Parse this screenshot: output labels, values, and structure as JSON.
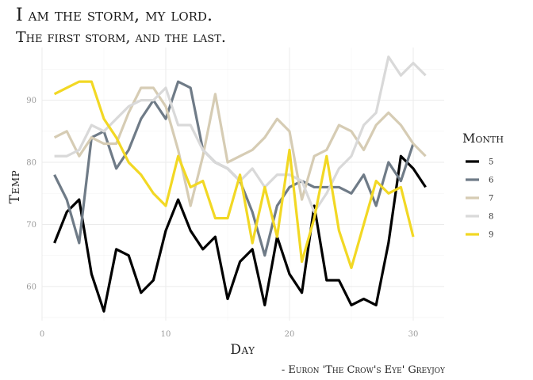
{
  "chart_data": {
    "type": "line",
    "title": "I am the storm, my lord.",
    "subtitle": "The first storm, and the last.",
    "xlabel": "Day",
    "ylabel": "Temp",
    "caption": "- Euron 'The Crow's Eye' Greyjoy",
    "xlim": [
      0,
      32.5
    ],
    "ylim": [
      54.5,
      98.5
    ],
    "xticks": [
      0,
      10,
      20,
      30
    ],
    "yticks": [
      60,
      70,
      80,
      90
    ],
    "grid": true,
    "legend": {
      "title": "Month",
      "position": "right"
    },
    "series": [
      {
        "name": "5",
        "color": "#000000",
        "x": [
          1,
          2,
          3,
          4,
          5,
          6,
          7,
          8,
          9,
          10,
          11,
          12,
          13,
          14,
          15,
          16,
          17,
          18,
          19,
          20,
          21,
          22,
          23,
          24,
          25,
          26,
          27,
          28,
          29,
          30,
          31
        ],
        "y": [
          67,
          72,
          74,
          62,
          56,
          66,
          65,
          59,
          61,
          69,
          74,
          69,
          66,
          68,
          58,
          64,
          66,
          57,
          68,
          62,
          59,
          73,
          61,
          61,
          57,
          58,
          57,
          67,
          81,
          79,
          76
        ]
      },
      {
        "name": "6",
        "color": "#6f7b87",
        "x": [
          1,
          2,
          3,
          4,
          5,
          6,
          7,
          8,
          9,
          10,
          11,
          12,
          13,
          14,
          15,
          16,
          17,
          18,
          19,
          20,
          21,
          22,
          23,
          24,
          25,
          26,
          27,
          28,
          29,
          30
        ],
        "y": [
          78,
          74,
          67,
          84,
          85,
          79,
          82,
          87,
          90,
          87,
          93,
          92,
          82,
          80,
          79,
          77,
          72,
          65,
          73,
          76,
          77,
          76,
          76,
          76,
          75,
          78,
          73,
          80,
          77,
          83
        ]
      },
      {
        "name": "7",
        "color": "#d6ccb4",
        "x": [
          1,
          2,
          3,
          4,
          5,
          6,
          7,
          8,
          9,
          10,
          11,
          12,
          13,
          14,
          15,
          16,
          17,
          18,
          19,
          20,
          21,
          22,
          23,
          24,
          25,
          26,
          27,
          28,
          29,
          30,
          31
        ],
        "y": [
          84,
          85,
          81,
          84,
          83,
          83,
          88,
          92,
          92,
          89,
          82,
          73,
          81,
          91,
          80,
          81,
          82,
          84,
          87,
          85,
          74,
          81,
          82,
          86,
          85,
          82,
          86,
          88,
          86,
          83,
          81
        ]
      },
      {
        "name": "8",
        "color": "#d9d9d9",
        "x": [
          1,
          2,
          3,
          4,
          5,
          6,
          7,
          8,
          9,
          10,
          11,
          12,
          13,
          14,
          15,
          16,
          17,
          18,
          19,
          20,
          21,
          22,
          23,
          24,
          25,
          26,
          27,
          28,
          29,
          30,
          31
        ],
        "y": [
          81,
          81,
          82,
          86,
          85,
          87,
          89,
          90,
          90,
          92,
          86,
          86,
          82,
          80,
          79,
          77,
          79,
          76,
          78,
          78,
          77,
          72,
          75,
          79,
          81,
          86,
          88,
          97,
          94,
          96,
          94
        ]
      },
      {
        "name": "9",
        "color": "#f2d824",
        "x": [
          1,
          2,
          3,
          4,
          5,
          6,
          7,
          8,
          9,
          10,
          11,
          12,
          13,
          14,
          15,
          16,
          17,
          18,
          19,
          20,
          21,
          22,
          23,
          24,
          25,
          26,
          27,
          28,
          29,
          30
        ],
        "y": [
          91,
          92,
          93,
          93,
          87,
          84,
          80,
          78,
          75,
          73,
          81,
          76,
          77,
          71,
          71,
          78,
          67,
          76,
          68,
          82,
          64,
          71,
          81,
          69,
          63,
          70,
          77,
          75,
          76,
          68
        ]
      }
    ]
  }
}
